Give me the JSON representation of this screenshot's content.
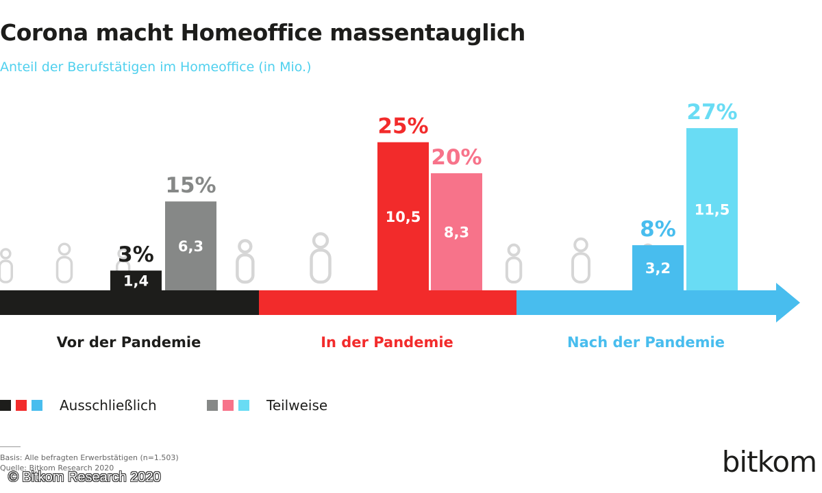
{
  "title": "Corona macht Homeoffice massentauglich",
  "subtitle": "Anteil der Berufstätigen im Homeoffice (in Mio.)",
  "chart_data": {
    "type": "bar",
    "categories": [
      "Vor der Pandemie",
      "In der Pandemie",
      "Nach der Pandemie"
    ],
    "series": [
      {
        "name": "Ausschließlich",
        "values": [
          1.4,
          10.5,
          3.2
        ],
        "labels": [
          "1,4",
          "10,5",
          "3,2"
        ],
        "percent_labels": [
          "3%",
          "25%",
          "8%"
        ]
      },
      {
        "name": "Teilweise",
        "values": [
          6.3,
          8.3,
          11.5
        ],
        "labels": [
          "6,3",
          "8,3",
          "11,5"
        ],
        "percent_labels": [
          "15%",
          "20%",
          "27%"
        ]
      }
    ],
    "colors": {
      "ausschliesslich": [
        "#1d1d1b",
        "#f22b2b",
        "#48bdee"
      ],
      "teilweise": [
        "#868887",
        "#f7738a",
        "#69dcf4"
      ],
      "category_label": [
        "#1d1d1b",
        "#f22b2b",
        "#48bdee"
      ]
    },
    "legend_position": "bottom-left"
  },
  "legend": {
    "ausschliesslich": "Ausschließlich",
    "teilweise": "Teilweise"
  },
  "footnote": {
    "basis": "Basis: Alle befragten Erwerbstätigen (n=1.503)",
    "quelle": "Quelle: Bitkom Research 2020"
  },
  "copyright": "© Bitkom Research 2020",
  "logo": {
    "text": "bitkom",
    "name": "bitkom-logo"
  }
}
